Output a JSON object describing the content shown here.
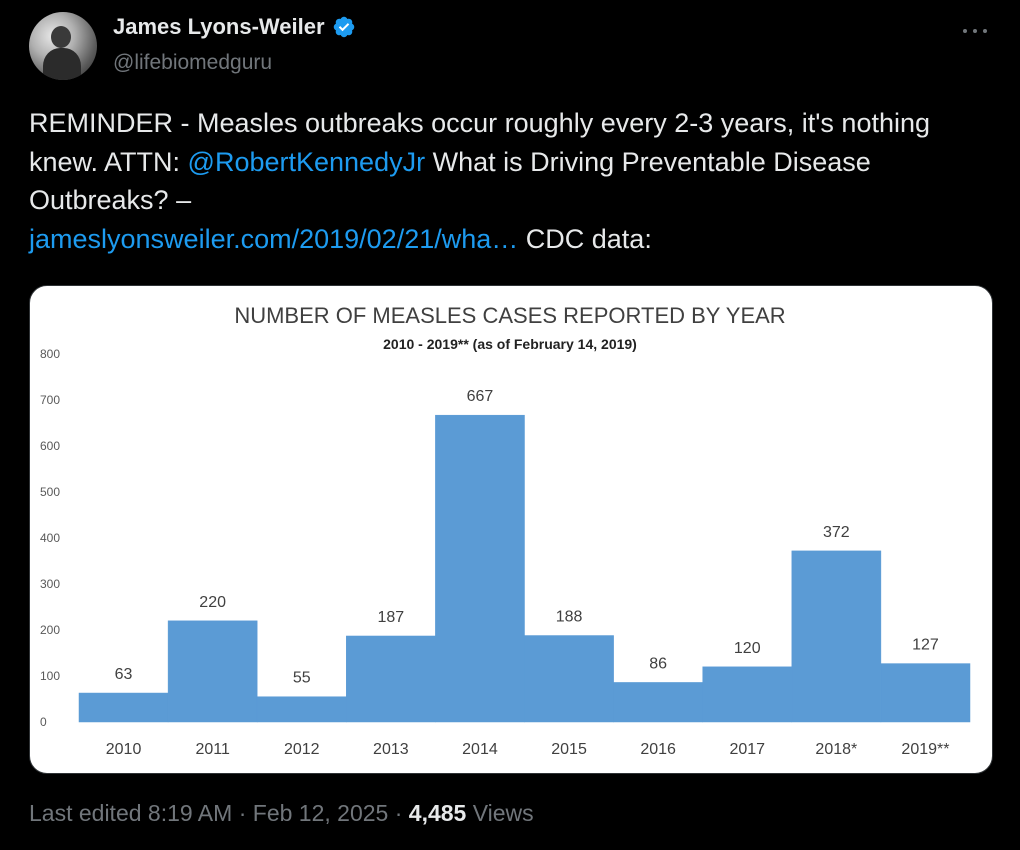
{
  "author": {
    "name": "James Lyons-Weiler",
    "handle": "@lifebiomedguru",
    "verified": true
  },
  "tweet": {
    "text_1": "REMINDER - Measles outbreaks occur roughly every 2-3 years, it's nothing knew.  ATTN: ",
    "mention": "@RobertKennedyJr",
    "text_2": "  What is Driving Preventable Disease Outbreaks? – ",
    "link": "jameslyonsweiler.com/2019/02/21/wha…",
    "text_3": "  CDC data:"
  },
  "footer": {
    "edited": "Last edited 8:19 AM",
    "sep1": " · ",
    "date": "Feb 12, 2025",
    "sep2": " · ",
    "views_count": "4,485",
    "views_label": " Views"
  },
  "colors": {
    "background": "#000000",
    "accent_link": "#1d9bf0",
    "muted": "#71767b",
    "bar": "#5b9bd5",
    "verified": "#1d9bf0"
  },
  "icons": [
    "verified-badge-icon",
    "more-options-icon"
  ],
  "chart_data": {
    "type": "bar",
    "title": "NUMBER OF MEASLES CASES REPORTED BY YEAR",
    "subtitle": "2010 - 2019** (as of February 14, 2019)",
    "categories": [
      "2010",
      "2011",
      "2012",
      "2013",
      "2014",
      "2015",
      "2016",
      "2017",
      "2018*",
      "2019**"
    ],
    "values": [
      63,
      220,
      55,
      187,
      667,
      188,
      86,
      120,
      372,
      127
    ],
    "data_labels": [
      "63",
      "220",
      "55",
      "187",
      "667",
      "188",
      "86",
      "120",
      "372",
      "127"
    ],
    "yticks": [
      "0",
      "100",
      "200",
      "300",
      "400",
      "500",
      "600",
      "700",
      "800"
    ],
    "ylim": [
      0,
      800
    ],
    "xlabel": "",
    "ylabel": "",
    "grid": false,
    "bar_gap": 0
  }
}
